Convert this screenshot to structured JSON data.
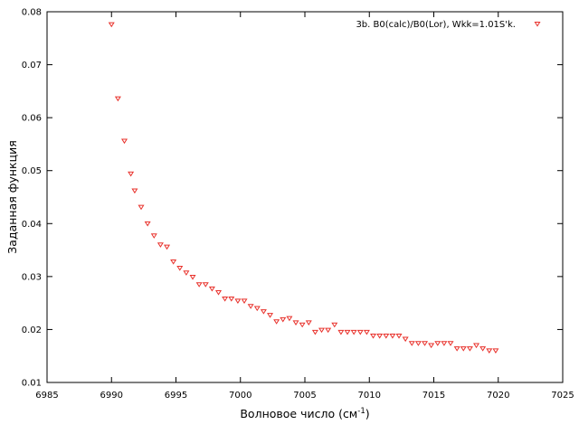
{
  "chart_data": {
    "type": "scatter",
    "xlabel": "Волновое число (см",
    "xlabel_sup": "-1",
    "xlabel_suffix": ")",
    "ylabel": "Заданная функция",
    "xlim": [
      6985,
      7025
    ],
    "ylim": [
      0.01,
      0.08
    ],
    "x_ticks": [
      6985,
      6990,
      6995,
      7000,
      7005,
      7010,
      7015,
      7020,
      7025
    ],
    "y_ticks": [
      0.01,
      0.02,
      0.03,
      0.04,
      0.05,
      0.06,
      0.07,
      0.08
    ],
    "x_tick_labels": [
      "6985",
      "6990",
      "6995",
      "7000",
      "7005",
      "7010",
      "7015",
      "7020",
      "7025"
    ],
    "y_tick_labels": [
      "0.01",
      "0.02",
      "0.03",
      "0.04",
      "0.05",
      "0.06",
      "0.07",
      "0.08"
    ],
    "grid": false,
    "legend_position": "top-right",
    "series": [
      {
        "name": "3b. B0(calc)/B0(Lor), Wkk=1.01S'k.",
        "color": "#e8302a",
        "marker": "triangle-down",
        "points": [
          [
            6990.0,
            0.0776
          ],
          [
            6990.5,
            0.0636
          ],
          [
            6991.0,
            0.0556
          ],
          [
            6991.5,
            0.0494
          ],
          [
            6991.8,
            0.0462
          ],
          [
            6992.3,
            0.0431
          ],
          [
            6992.8,
            0.04
          ],
          [
            6993.3,
            0.0377
          ],
          [
            6993.8,
            0.036
          ],
          [
            6994.3,
            0.0356
          ],
          [
            6994.8,
            0.0328
          ],
          [
            6995.3,
            0.0316
          ],
          [
            6995.8,
            0.0307
          ],
          [
            6996.3,
            0.0299
          ],
          [
            6996.8,
            0.0285
          ],
          [
            6997.3,
            0.0285
          ],
          [
            6997.8,
            0.0277
          ],
          [
            6998.3,
            0.027
          ],
          [
            6998.8,
            0.0258
          ],
          [
            6999.3,
            0.0258
          ],
          [
            6999.8,
            0.0254
          ],
          [
            7000.3,
            0.0254
          ],
          [
            7000.8,
            0.0244
          ],
          [
            7001.3,
            0.024
          ],
          [
            7001.8,
            0.0234
          ],
          [
            7002.3,
            0.0227
          ],
          [
            7002.8,
            0.0215
          ],
          [
            7003.3,
            0.0219
          ],
          [
            7003.8,
            0.0221
          ],
          [
            7004.3,
            0.0213
          ],
          [
            7004.8,
            0.0209
          ],
          [
            7005.3,
            0.0213
          ],
          [
            7005.8,
            0.0195
          ],
          [
            7006.3,
            0.0199
          ],
          [
            7006.8,
            0.0199
          ],
          [
            7007.3,
            0.0209
          ],
          [
            7007.8,
            0.0195
          ],
          [
            7008.3,
            0.0195
          ],
          [
            7008.8,
            0.0195
          ],
          [
            7009.3,
            0.0195
          ],
          [
            7009.8,
            0.0195
          ],
          [
            7010.3,
            0.0188
          ],
          [
            7010.8,
            0.0188
          ],
          [
            7011.3,
            0.0188
          ],
          [
            7011.8,
            0.0188
          ],
          [
            7012.3,
            0.0188
          ],
          [
            7012.8,
            0.0182
          ],
          [
            7013.3,
            0.0174
          ],
          [
            7013.8,
            0.0174
          ],
          [
            7014.3,
            0.0174
          ],
          [
            7014.8,
            0.017
          ],
          [
            7015.3,
            0.0174
          ],
          [
            7015.8,
            0.0174
          ],
          [
            7016.3,
            0.0174
          ],
          [
            7016.8,
            0.0164
          ],
          [
            7017.3,
            0.0164
          ],
          [
            7017.8,
            0.0164
          ],
          [
            7018.3,
            0.017
          ],
          [
            7018.8,
            0.0164
          ],
          [
            7019.3,
            0.016
          ],
          [
            7019.8,
            0.016
          ]
        ]
      }
    ]
  }
}
